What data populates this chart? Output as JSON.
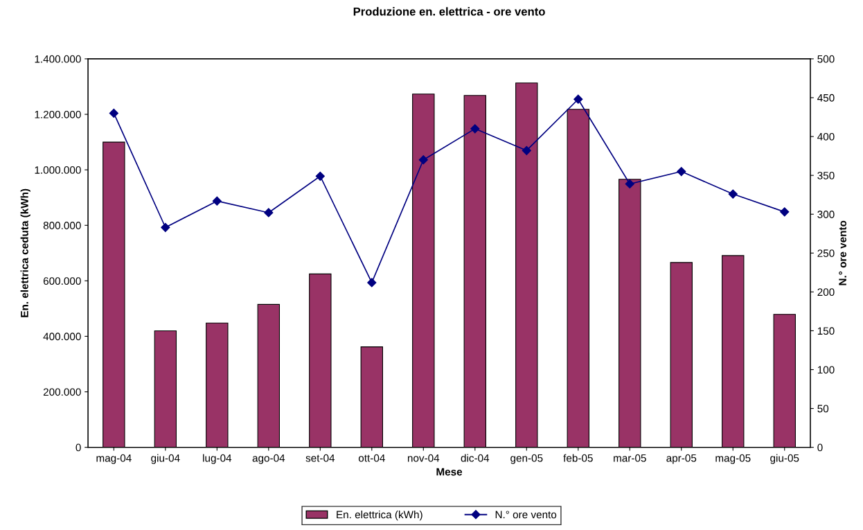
{
  "chart_data": {
    "type": "bar",
    "title": "Produzione en. elettrica - ore vento",
    "xlabel": "Mese",
    "ylabel": "En. elettrica ceduta (kWh)",
    "y2label": "N.° ore vento",
    "categories": [
      "mag-04",
      "giu-04",
      "lug-04",
      "ago-04",
      "set-04",
      "ott-04",
      "nov-04",
      "dic-04",
      "gen-05",
      "feb-05",
      "mar-05",
      "apr-05",
      "mag-05",
      "giu-05"
    ],
    "series": [
      {
        "name": "En. elettrica (kWh)",
        "color": "#993366",
        "values": [
          1100000,
          420000,
          448000,
          515000,
          625000,
          362000,
          1273000,
          1268000,
          1313000,
          1218000,
          966000,
          666000,
          691000,
          479000
        ]
      },
      {
        "name": "N.° ore vento",
        "type": "line",
        "axis": "y2",
        "color": "#000080",
        "values": [
          430,
          283,
          317,
          302,
          349,
          212,
          370,
          410,
          382,
          448,
          339,
          355,
          326,
          303
        ]
      }
    ],
    "ylim": [
      0,
      1400000
    ],
    "yticks": [
      0,
      {
        "value": 200000,
        "label": "200.000"
      },
      {
        "value": 400000,
        "label": "400.000"
      },
      {
        "value": 600000,
        "label": "600.000"
      },
      {
        "value": 800000,
        "label": "800.000"
      },
      {
        "value": 1000000,
        "label": "1.000.000"
      },
      {
        "value": 1200000,
        "label": "1.200.000"
      },
      {
        "value": 1400000,
        "label": "1.400.000"
      }
    ],
    "y2lim": [
      0,
      500
    ],
    "y2ticks": [
      0,
      50,
      100,
      150,
      200,
      250,
      300,
      350,
      400,
      450,
      500
    ],
    "marker": "diamond",
    "line_style": "solid",
    "grid": false,
    "legend": "bottom"
  }
}
